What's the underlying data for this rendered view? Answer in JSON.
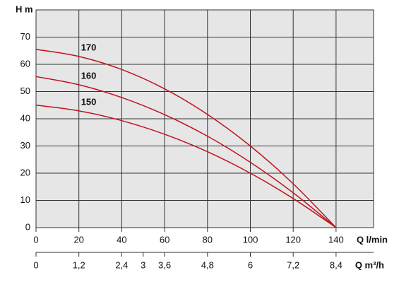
{
  "chart_data": {
    "type": "line",
    "y_label": "H m",
    "x_label": "Q l/min",
    "x2_label": "Q m³/h",
    "x": [
      0,
      20,
      40,
      60,
      80,
      100,
      120,
      140
    ],
    "series": [
      {
        "name": "170",
        "color": "#c0141c",
        "values": [
          65.5,
          62.9,
          58.1,
          51,
          41.6,
          30,
          16.1,
          0
        ]
      },
      {
        "name": "160",
        "color": "#c0141c",
        "values": [
          55.5,
          52.5,
          47.8,
          41.5,
          33.6,
          24,
          12.8,
          0
        ]
      },
      {
        "name": "150",
        "color": "#c0141c",
        "values": [
          45,
          42.9,
          39.3,
          34.3,
          27.9,
          20,
          10.7,
          0
        ]
      }
    ],
    "xlim": [
      0,
      157.5
    ],
    "xticks": [
      0,
      20,
      40,
      60,
      80,
      100,
      120,
      140
    ],
    "x2lim": [
      0,
      9.45
    ],
    "x2ticks": [
      0,
      {
        "value": 1.2,
        "label": "1,2"
      },
      {
        "value": 2.4,
        "label": "2,4"
      },
      3,
      {
        "value": 3.6,
        "label": "3,6"
      },
      {
        "value": 4.8,
        "label": "4,8"
      },
      6,
      {
        "value": 7.2,
        "label": "7,2"
      },
      {
        "value": 8.4,
        "label": "8,4"
      }
    ],
    "ylim": [
      0,
      80
    ],
    "yticks": [
      0,
      10,
      20,
      30,
      40,
      50,
      60,
      70
    ],
    "grid": true,
    "background": "#e6e6e6"
  }
}
